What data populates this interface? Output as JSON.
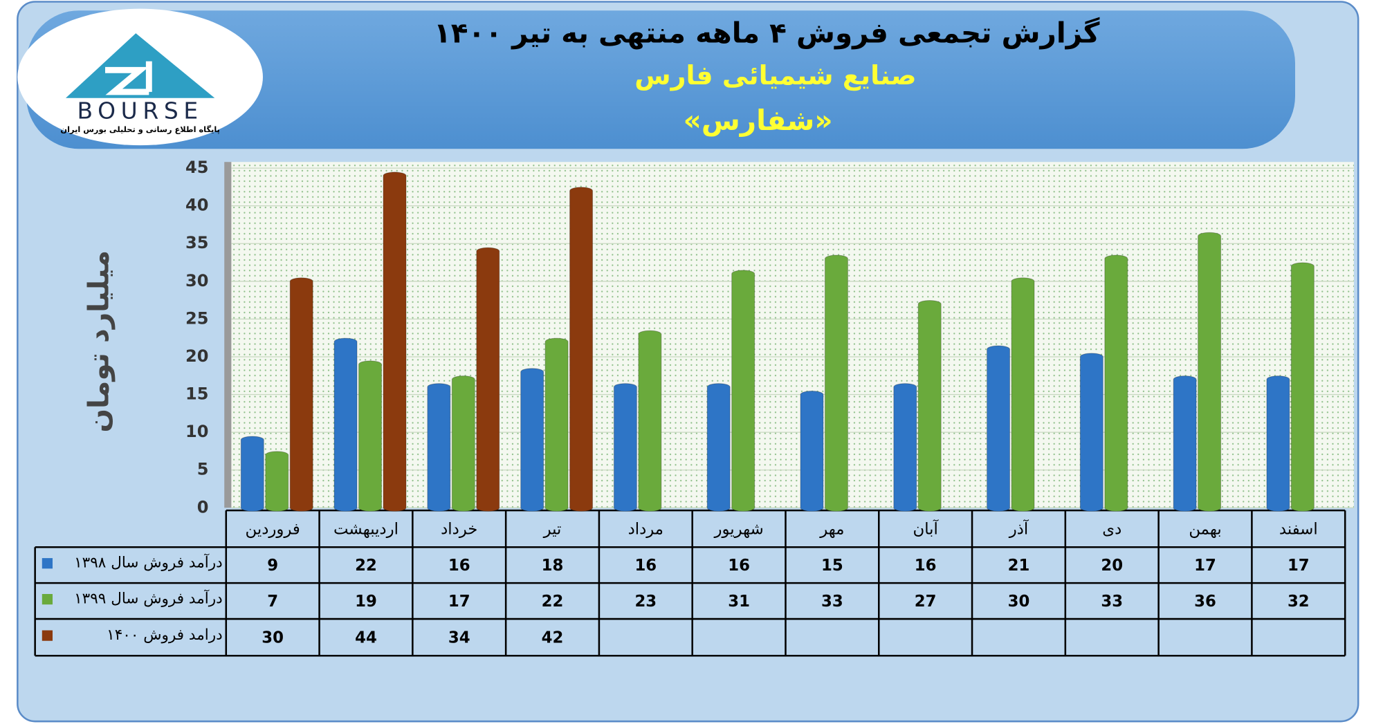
{
  "header": {
    "logo_text": "BOURSE",
    "logo_caption": "پایگاه اطلاع رسانی و تحلیلی بورس ایران"
  },
  "chart_data": {
    "type": "bar",
    "title": "گزارش تجمعی فروش ۴ ماهه منتهی به تیر ۱۴۰۰",
    "subtitle": "صنایع شیمیائی فارس",
    "subtitle2": "«شفارس»",
    "ylabel": "میلیارد تومان",
    "categories": [
      "فروردین",
      "اردیبهشت",
      "خرداد",
      "تیر",
      "مرداد",
      "شهریور",
      "مهر",
      "آبان",
      "آذر",
      "دی",
      "بهمن",
      "اسفند"
    ],
    "series": [
      {
        "name": "درآمد فروش سال ۱۳۹۸",
        "color": "#2e75c6",
        "values": [
          9,
          22,
          16,
          18,
          16,
          16,
          15,
          16,
          21,
          20,
          17,
          17
        ]
      },
      {
        "name": "درآمد فروش سال ۱۳۹۹",
        "color": "#6aaa3c",
        "values": [
          7,
          19,
          17,
          22,
          23,
          31,
          33,
          27,
          30,
          33,
          36,
          32
        ]
      },
      {
        "name": "درامد فروش ۱۴۰۰",
        "color": "#8b3a0e",
        "values": [
          30,
          44,
          34,
          42,
          null,
          null,
          null,
          null,
          null,
          null,
          null,
          null
        ]
      }
    ],
    "ylim": [
      0,
      45
    ],
    "yticks": [
      0,
      5,
      10,
      15,
      20,
      25,
      30,
      35,
      40,
      45
    ],
    "grid": true
  }
}
